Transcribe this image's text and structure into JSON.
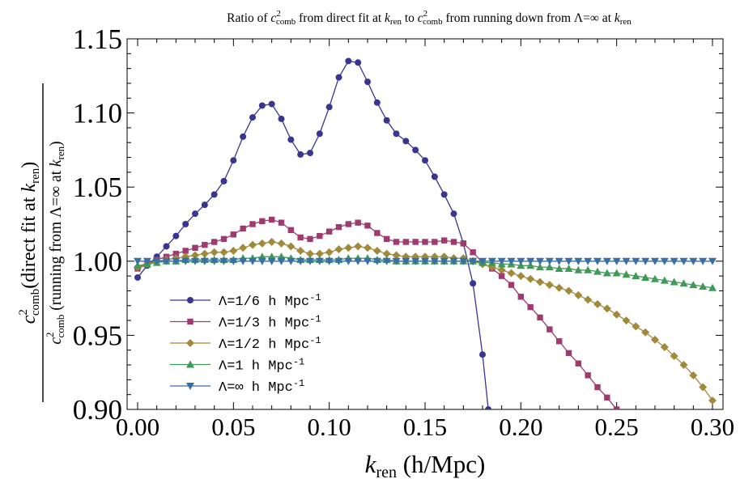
{
  "chart_data": {
    "type": "line",
    "title_parts": {
      "a": "Ratio of  ",
      "b": "c",
      "c": "2",
      "d": "comb",
      "e": " from direct fit at ",
      "f": "k",
      "g": "ren",
      "h": " to ",
      "i": "c",
      "j": "2",
      "k": "comb",
      "l": " from running down from Λ=∞ at ",
      "m": "k",
      "n": "ren"
    },
    "xlabel_parts": {
      "k": "k",
      "sub": "ren",
      "unit": " (h/Mpc)"
    },
    "ylabel_num_parts": {
      "c": "c",
      "sup": "2",
      "sub": "comb",
      "a": "(direct fit at ",
      "k": "k",
      "ksub": "ren",
      "close": ")"
    },
    "ylabel_den_parts": {
      "c": "c",
      "sup": "2",
      "sub": "comb",
      "a": " (running from Λ=∞ at ",
      "k": "k",
      "ksub": "ren",
      "close": ")"
    },
    "xlim": [
      0.0,
      0.3
    ],
    "ylim": [
      0.9,
      1.15
    ],
    "xticks": [
      "0.00",
      "0.05",
      "0.10",
      "0.15",
      "0.20",
      "0.25",
      "0.30"
    ],
    "yticks": [
      "0.90",
      "0.95",
      "1.00",
      "1.05",
      "1.10",
      "1.15"
    ],
    "legend_position": "bottom-left",
    "series": [
      {
        "name": "Λ=1/6 h Mpc",
        "name_sup": "-1",
        "color": "#3a3590",
        "marker": "circle",
        "x": [
          0.0,
          0.005,
          0.01,
          0.015,
          0.02,
          0.025,
          0.03,
          0.035,
          0.04,
          0.045,
          0.05,
          0.055,
          0.06,
          0.065,
          0.07,
          0.075,
          0.08,
          0.085,
          0.09,
          0.095,
          0.1,
          0.105,
          0.11,
          0.115,
          0.12,
          0.125,
          0.13,
          0.135,
          0.14,
          0.145,
          0.15,
          0.155,
          0.16,
          0.165,
          0.17,
          0.175,
          0.18,
          0.183
        ],
        "y": [
          0.989,
          0.997,
          1.003,
          1.01,
          1.017,
          1.025,
          1.032,
          1.038,
          1.045,
          1.054,
          1.068,
          1.084,
          1.097,
          1.105,
          1.106,
          1.096,
          1.082,
          1.072,
          1.073,
          1.086,
          1.104,
          1.124,
          1.135,
          1.134,
          1.121,
          1.107,
          1.095,
          1.086,
          1.081,
          1.075,
          1.068,
          1.057,
          1.045,
          1.032,
          1.012,
          0.985,
          0.937,
          0.9
        ]
      },
      {
        "name": "Λ=1/3 h Mpc",
        "name_sup": "-1",
        "color": "#9e3a6e",
        "marker": "square",
        "x": [
          0.0,
          0.005,
          0.01,
          0.015,
          0.02,
          0.025,
          0.03,
          0.035,
          0.04,
          0.045,
          0.05,
          0.055,
          0.06,
          0.065,
          0.07,
          0.075,
          0.08,
          0.085,
          0.09,
          0.095,
          0.1,
          0.105,
          0.11,
          0.115,
          0.12,
          0.125,
          0.13,
          0.135,
          0.14,
          0.145,
          0.15,
          0.155,
          0.16,
          0.165,
          0.17,
          0.175,
          0.18,
          0.185,
          0.19,
          0.195,
          0.2,
          0.205,
          0.21,
          0.215,
          0.22,
          0.225,
          0.23,
          0.235,
          0.24,
          0.245,
          0.25
        ],
        "y": [
          0.995,
          0.998,
          1.001,
          1.003,
          1.005,
          1.007,
          1.009,
          1.011,
          1.013,
          1.015,
          1.018,
          1.022,
          1.025,
          1.027,
          1.028,
          1.026,
          1.021,
          1.016,
          1.015,
          1.017,
          1.02,
          1.023,
          1.025,
          1.026,
          1.024,
          1.019,
          1.015,
          1.013,
          1.013,
          1.013,
          1.013,
          1.013,
          1.014,
          1.013,
          1.012,
          1.006,
          0.999,
          0.995,
          0.99,
          0.984,
          0.976,
          0.969,
          0.962,
          0.954,
          0.946,
          0.938,
          0.931,
          0.923,
          0.915,
          0.908,
          0.9
        ]
      },
      {
        "name": "Λ=1/2 h Mpc",
        "name_sup": "-1",
        "color": "#a08a3a",
        "marker": "diamond",
        "x": [
          0.0,
          0.005,
          0.01,
          0.015,
          0.02,
          0.025,
          0.03,
          0.035,
          0.04,
          0.045,
          0.05,
          0.055,
          0.06,
          0.065,
          0.07,
          0.075,
          0.08,
          0.085,
          0.09,
          0.095,
          0.1,
          0.105,
          0.11,
          0.115,
          0.12,
          0.125,
          0.13,
          0.135,
          0.14,
          0.145,
          0.15,
          0.155,
          0.16,
          0.165,
          0.17,
          0.175,
          0.18,
          0.185,
          0.19,
          0.195,
          0.2,
          0.205,
          0.21,
          0.215,
          0.22,
          0.225,
          0.23,
          0.235,
          0.24,
          0.245,
          0.25,
          0.255,
          0.26,
          0.265,
          0.27,
          0.275,
          0.28,
          0.285,
          0.29,
          0.295,
          0.3
        ],
        "y": [
          0.996,
          0.998,
          1.0,
          1.001,
          1.002,
          1.003,
          1.004,
          1.005,
          1.006,
          1.006,
          1.007,
          1.009,
          1.011,
          1.012,
          1.013,
          1.012,
          1.01,
          1.007,
          1.005,
          1.005,
          1.006,
          1.008,
          1.009,
          1.01,
          1.009,
          1.007,
          1.005,
          1.004,
          1.003,
          1.003,
          1.003,
          1.003,
          1.003,
          1.002,
          1.002,
          1.0,
          0.998,
          0.996,
          0.994,
          0.992,
          0.99,
          0.988,
          0.986,
          0.984,
          0.982,
          0.98,
          0.977,
          0.974,
          0.971,
          0.968,
          0.964,
          0.96,
          0.956,
          0.952,
          0.947,
          0.942,
          0.936,
          0.93,
          0.923,
          0.915,
          0.906
        ]
      },
      {
        "name": "Λ=1 h Mpc",
        "name_sup": "-1",
        "color": "#3e9a55",
        "marker": "triangle-up",
        "x": [
          0.0,
          0.005,
          0.01,
          0.015,
          0.02,
          0.025,
          0.03,
          0.035,
          0.04,
          0.045,
          0.05,
          0.055,
          0.06,
          0.065,
          0.07,
          0.075,
          0.08,
          0.085,
          0.09,
          0.095,
          0.1,
          0.105,
          0.11,
          0.115,
          0.12,
          0.125,
          0.13,
          0.135,
          0.14,
          0.145,
          0.15,
          0.155,
          0.16,
          0.165,
          0.17,
          0.175,
          0.18,
          0.185,
          0.19,
          0.195,
          0.2,
          0.205,
          0.21,
          0.215,
          0.22,
          0.225,
          0.23,
          0.235,
          0.24,
          0.245,
          0.25,
          0.255,
          0.26,
          0.265,
          0.27,
          0.275,
          0.28,
          0.285,
          0.29,
          0.295,
          0.3
        ],
        "y": [
          0.997,
          0.998,
          0.999,
          1.0,
          1.0,
          1.001,
          1.001,
          1.001,
          1.001,
          1.001,
          1.001,
          1.002,
          1.002,
          1.003,
          1.003,
          1.003,
          1.002,
          1.001,
          1.001,
          1.001,
          1.001,
          1.001,
          1.002,
          1.002,
          1.002,
          1.001,
          1.001,
          1.0,
          1.0,
          1.0,
          1.0,
          1.0,
          1.0,
          1.0,
          1.0,
          1.0,
          0.999,
          0.999,
          0.998,
          0.998,
          0.997,
          0.997,
          0.996,
          0.996,
          0.995,
          0.995,
          0.994,
          0.994,
          0.993,
          0.992,
          0.992,
          0.991,
          0.99,
          0.989,
          0.988,
          0.987,
          0.986,
          0.985,
          0.984,
          0.983,
          0.982
        ]
      },
      {
        "name": "Λ=∞ h Mpc",
        "name_sup": "-1",
        "color": "#3a6ea6",
        "marker": "triangle-down",
        "x": [
          0.0,
          0.005,
          0.01,
          0.015,
          0.02,
          0.025,
          0.03,
          0.035,
          0.04,
          0.045,
          0.05,
          0.055,
          0.06,
          0.065,
          0.07,
          0.075,
          0.08,
          0.085,
          0.09,
          0.095,
          0.1,
          0.105,
          0.11,
          0.115,
          0.12,
          0.125,
          0.13,
          0.135,
          0.14,
          0.145,
          0.15,
          0.155,
          0.16,
          0.165,
          0.17,
          0.175,
          0.18,
          0.185,
          0.19,
          0.195,
          0.2,
          0.205,
          0.21,
          0.215,
          0.22,
          0.225,
          0.23,
          0.235,
          0.24,
          0.245,
          0.25,
          0.255,
          0.26,
          0.265,
          0.27,
          0.275,
          0.28,
          0.285,
          0.29,
          0.295,
          0.3
        ],
        "y": [
          1.0,
          1.0,
          1.0,
          1.0,
          1.0,
          1.0,
          1.0,
          1.0,
          1.0,
          1.0,
          1.0,
          1.0,
          1.0,
          1.0,
          1.0,
          1.0,
          1.0,
          1.0,
          1.0,
          1.0,
          1.0,
          1.0,
          1.0,
          1.0,
          1.0,
          1.0,
          1.0,
          1.0,
          1.0,
          1.0,
          1.0,
          1.0,
          1.0,
          1.0,
          1.0,
          1.0,
          1.0,
          1.0,
          1.0,
          1.0,
          1.0,
          1.0,
          1.0,
          1.0,
          1.0,
          1.0,
          1.0,
          1.0,
          1.0,
          1.0,
          1.0,
          1.0,
          1.0,
          1.0,
          1.0,
          1.0,
          1.0,
          1.0,
          1.0,
          1.0,
          1.0
        ]
      }
    ]
  }
}
